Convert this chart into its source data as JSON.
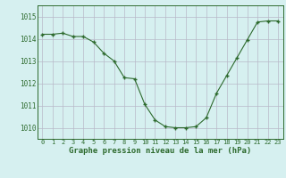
{
  "x": [
    0,
    1,
    2,
    3,
    4,
    5,
    6,
    7,
    8,
    9,
    10,
    11,
    12,
    13,
    14,
    15,
    16,
    17,
    18,
    19,
    20,
    21,
    22,
    23
  ],
  "y": [
    1014.2,
    1014.2,
    1014.25,
    1014.1,
    1014.1,
    1013.85,
    1013.35,
    1013.0,
    1012.25,
    1012.2,
    1011.05,
    1010.35,
    1010.05,
    1010.0,
    1010.0,
    1010.05,
    1010.45,
    1011.55,
    1012.35,
    1013.15,
    1013.95,
    1014.75,
    1014.8,
    1014.8
  ],
  "line_color": "#2d6a2d",
  "marker": "+",
  "marker_size": 3.5,
  "marker_lw": 1.0,
  "bg_color": "#d6f0f0",
  "grid_major_color": "#b8b8c8",
  "grid_minor_color": "#d0dce0",
  "xlabel": "Graphe pression niveau de la mer (hPa)",
  "xlabel_color": "#2d6a2d",
  "xlabel_fontsize": 6.5,
  "xtick_fontsize": 5.0,
  "ytick_fontsize": 5.5,
  "ylim": [
    1009.5,
    1015.5
  ],
  "yticks": [
    1010,
    1011,
    1012,
    1013,
    1014,
    1015
  ],
  "xlim": [
    -0.5,
    23.5
  ],
  "xticks": [
    0,
    1,
    2,
    3,
    4,
    5,
    6,
    7,
    8,
    9,
    10,
    11,
    12,
    13,
    14,
    15,
    16,
    17,
    18,
    19,
    20,
    21,
    22,
    23
  ]
}
